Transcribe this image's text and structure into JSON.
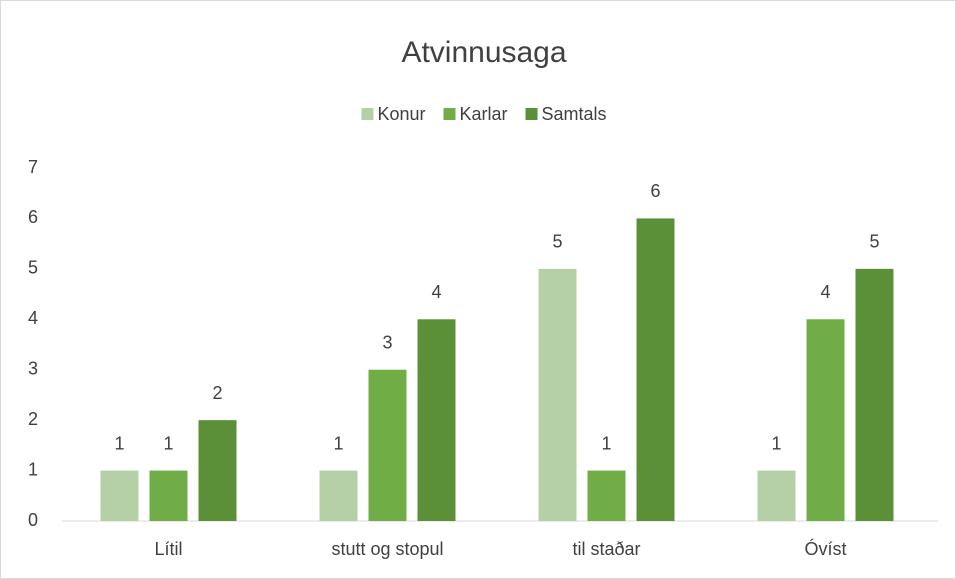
{
  "chart_data": {
    "type": "bar",
    "title": "Atvinnusaga",
    "categories": [
      "Lítil",
      "stutt og stopul",
      "til staðar",
      "Óvíst"
    ],
    "series": [
      {
        "name": "Konur",
        "color": "#b5d0a6",
        "values": [
          1,
          1,
          5,
          1
        ]
      },
      {
        "name": "Karlar",
        "color": "#70ad47",
        "values": [
          1,
          3,
          1,
          4
        ]
      },
      {
        "name": "Samtals",
        "color": "#5b9039",
        "values": [
          2,
          4,
          6,
          5
        ]
      }
    ],
    "ylim": [
      0,
      7
    ],
    "yticks": [
      0,
      1,
      2,
      3,
      4,
      5,
      6,
      7
    ],
    "grid": false,
    "legend": "top"
  }
}
